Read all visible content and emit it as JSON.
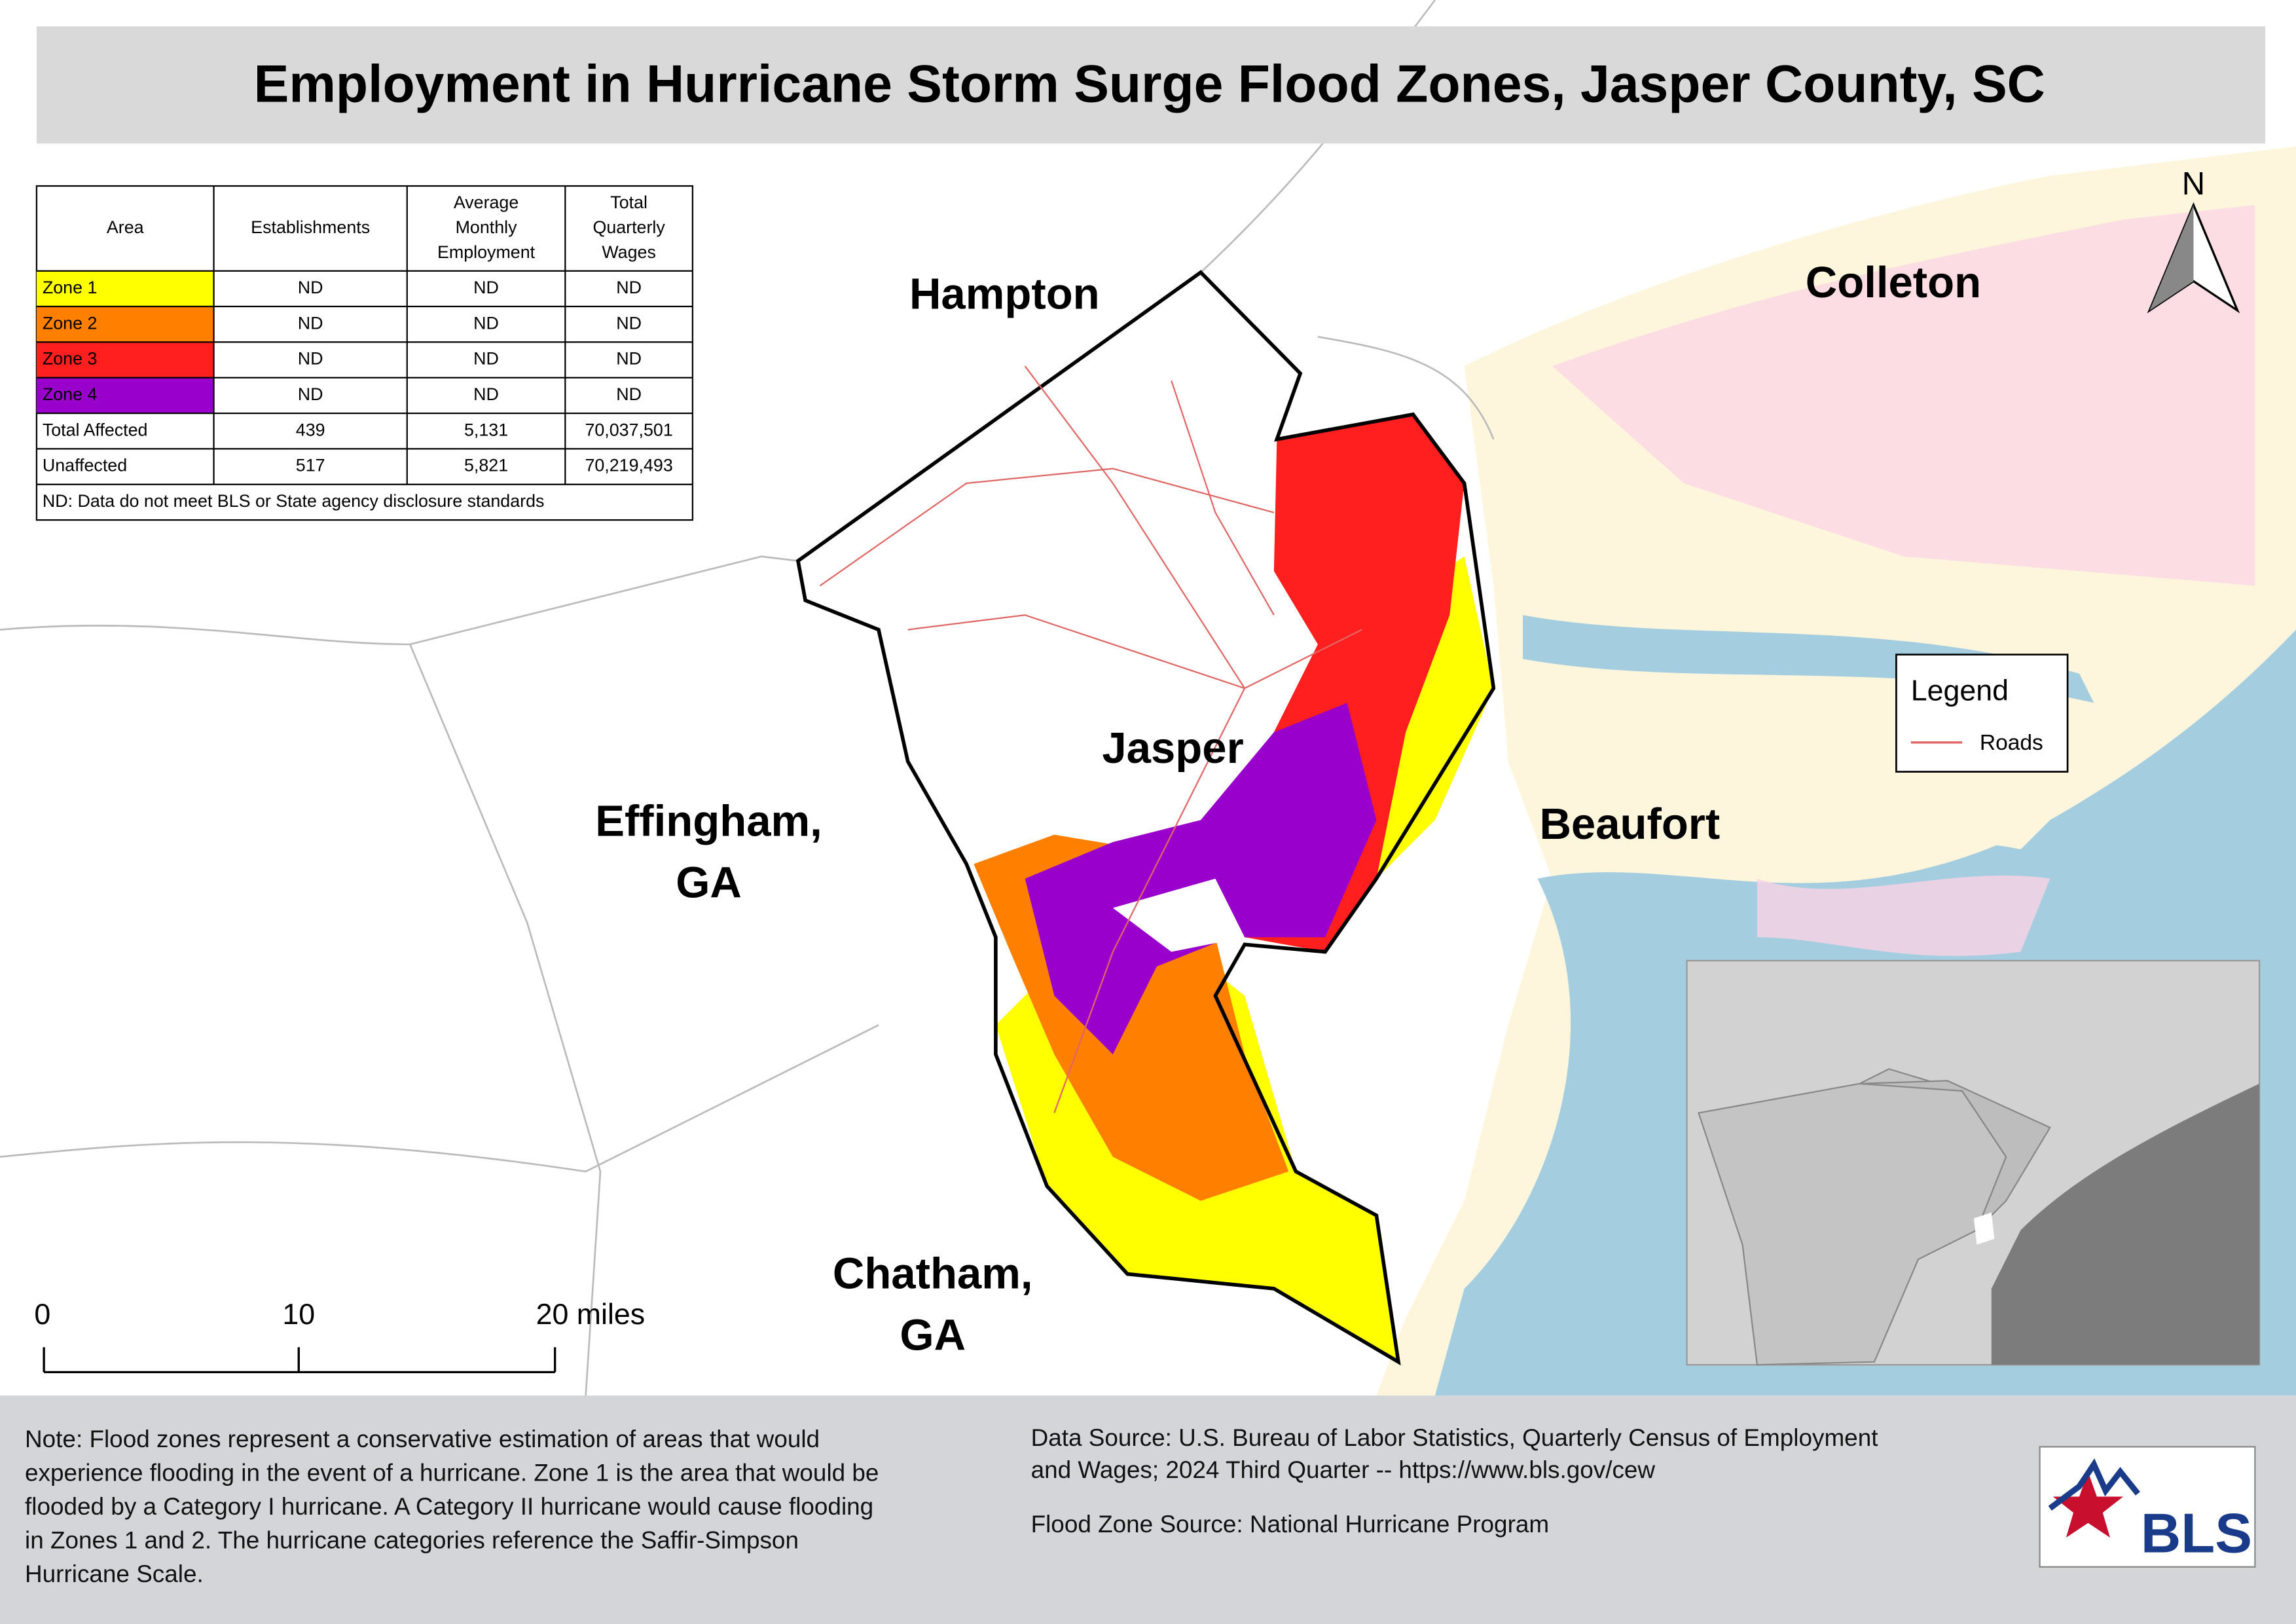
{
  "title": "Employment in Hurricane Storm Surge Flood Zones, Jasper County, SC",
  "table": {
    "headers": [
      [
        "Area"
      ],
      [
        "Establishments"
      ],
      [
        "Average",
        "Monthly",
        "Employment"
      ],
      [
        "Total",
        "Quarterly",
        "Wages"
      ]
    ],
    "rows": [
      {
        "cells": [
          "Zone 1",
          "ND",
          "ND",
          "ND"
        ],
        "color": "#ffff00"
      },
      {
        "cells": [
          "Zone 2",
          "ND",
          "ND",
          "ND"
        ],
        "color": "#ff8000"
      },
      {
        "cells": [
          "Zone 3",
          "ND",
          "ND",
          "ND"
        ],
        "color": "#ff1f1f"
      },
      {
        "cells": [
          "Zone 4",
          "ND",
          "ND",
          "ND"
        ],
        "color": "#9a00cc"
      },
      {
        "cells": [
          "Total Affected",
          "439",
          "5,131",
          "70,037,501"
        ]
      },
      {
        "cells": [
          "Unaffected",
          "517",
          "5,821",
          "70,219,493"
        ]
      }
    ],
    "footnote": "ND: Data do not meet BLS or State agency disclosure standards"
  },
  "places": {
    "hampton": [
      "Hampton"
    ],
    "colleton": [
      "Colleton"
    ],
    "jasper": [
      "Jasper"
    ],
    "beaufort": [
      "Beaufort"
    ],
    "effingham": [
      "Effingham,",
      "GA"
    ],
    "chatham": [
      "Chatham,",
      "GA"
    ]
  },
  "north_arrow": "N",
  "legend": {
    "title": "Legend",
    "items": [
      {
        "label": "Roads",
        "color": "#e06666"
      }
    ]
  },
  "scale_bar": [
    "0",
    "10",
    "20 miles"
  ],
  "note": [
    "Note: Flood zones represent a conservative estimation of areas that would",
    "experience flooding in the event of a hurricane. Zone 1 is the area that would be",
    "flooded by a Category I hurricane. A Category II hurricane would cause flooding",
    "in Zones 1 and 2. The hurricane categories reference the Saffir-Simpson",
    "Hurricane Scale."
  ],
  "data_source": [
    "Data Source: U.S. Bureau of Labor Statistics, Quarterly Census of Employment",
    "and Wages; 2024 Third Quarter -- https://www.bls.gov/cew"
  ],
  "flood_source": "Flood Zone Source: National Hurricane Program",
  "logo": "BLS"
}
